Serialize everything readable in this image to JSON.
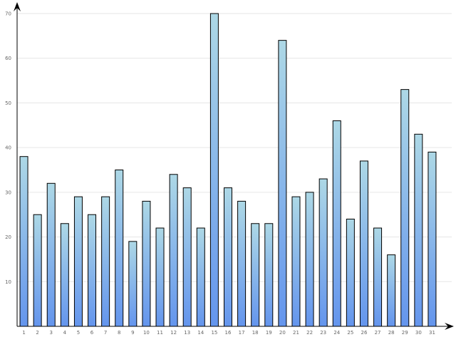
{
  "chart_data": {
    "type": "bar",
    "title": "",
    "xlabel": "",
    "ylabel": "",
    "categories": [
      "1",
      "2",
      "3",
      "4",
      "5",
      "6",
      "7",
      "8",
      "9",
      "10",
      "11",
      "12",
      "13",
      "14",
      "15",
      "16",
      "17",
      "18",
      "19",
      "20",
      "21",
      "22",
      "23",
      "24",
      "25",
      "26",
      "27",
      "28",
      "29",
      "30",
      "31"
    ],
    "values": [
      38,
      25,
      32,
      23,
      29,
      25,
      29,
      35,
      19,
      28,
      22,
      34,
      31,
      22,
      70,
      31,
      28,
      23,
      23,
      64,
      29,
      30,
      33,
      46,
      24,
      37,
      22,
      16,
      53,
      43,
      39
    ],
    "ylim": [
      0,
      70
    ],
    "yticks": [
      10,
      20,
      30,
      40,
      50,
      60,
      70
    ],
    "grid": true,
    "legend": "none",
    "colors": {
      "bar_top": "#add8e6",
      "bar_bottom": "#6495ed",
      "bar_outline": "#000000",
      "grid": "#e6e6e6",
      "tick_label": "#666666",
      "axis": "#000000"
    }
  }
}
